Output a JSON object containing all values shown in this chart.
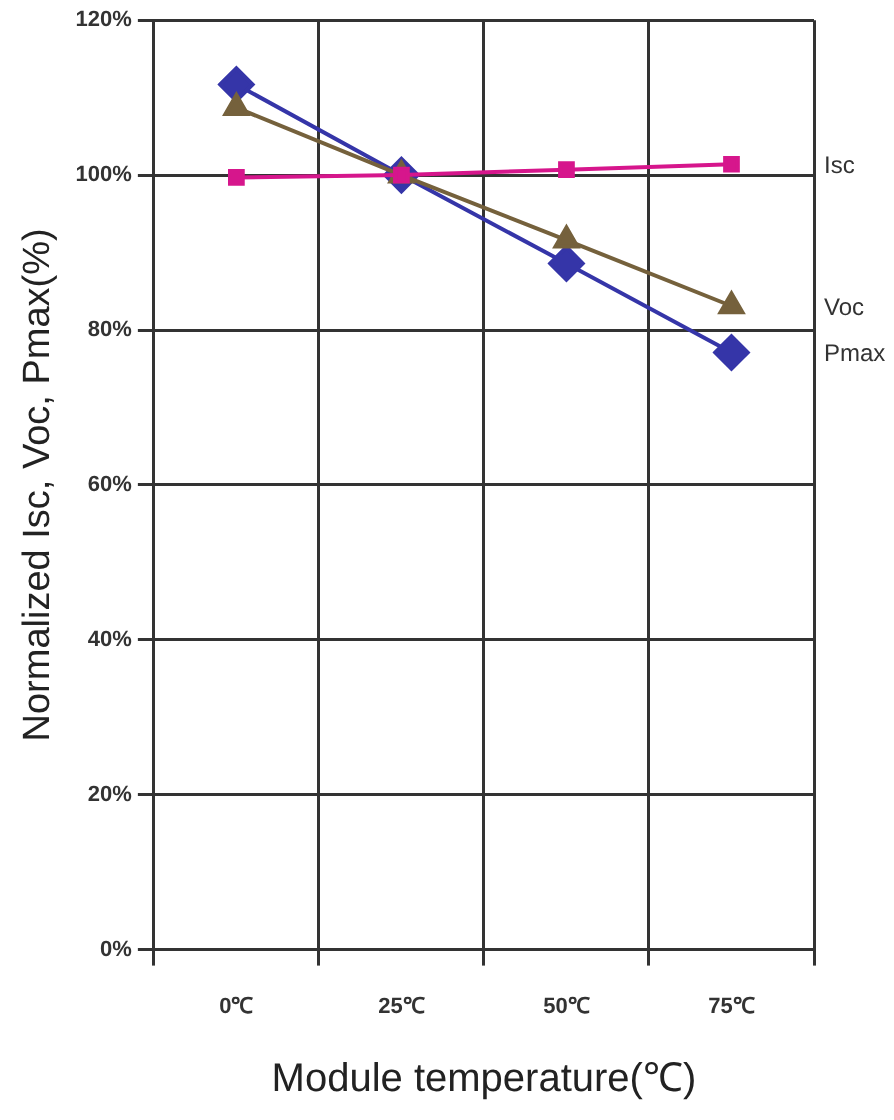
{
  "chart_data": {
    "type": "line",
    "xlabel": "Module temperature(℃)",
    "ylabel": "Normalized Isc, Voc, Pmax(%)",
    "categories": [
      "0℃",
      "25℃",
      "50℃",
      "75℃"
    ],
    "series": [
      {
        "name": "Isc",
        "color": "#d6168c",
        "marker": "square",
        "values": [
          99.7,
          100,
          100.7,
          101.4
        ]
      },
      {
        "name": "Voc",
        "color": "#75613c",
        "marker": "triangle",
        "values": [
          108.7,
          100,
          91.6,
          83.1
        ]
      },
      {
        "name": "Pmax",
        "color": "#3535a8",
        "marker": "diamond",
        "values": [
          111.7,
          100,
          88.6,
          77.1
        ]
      }
    ],
    "ylim": [
      0,
      120
    ],
    "yticks": [
      {
        "value": 0,
        "label": "0%"
      },
      {
        "value": 20,
        "label": "20%"
      },
      {
        "value": 40,
        "label": "40%"
      },
      {
        "value": 60,
        "label": "60%"
      },
      {
        "value": 80,
        "label": "80%"
      },
      {
        "value": 100,
        "label": "100%"
      },
      {
        "value": 120,
        "label": "120%"
      }
    ],
    "grid": true,
    "legend": false
  }
}
